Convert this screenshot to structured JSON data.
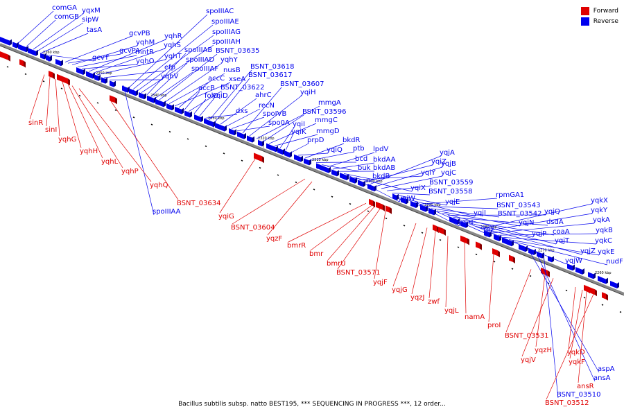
{
  "caption": "Bacillus subtilis subsp. natto BEST195, *** SEQUENCING IN PROGRESS ***, 12 order...",
  "legend": [
    {
      "label": "Forward",
      "color": "#e00000"
    },
    {
      "label": "Reverse",
      "color": "#0000ee"
    }
  ],
  "colors": {
    "forward": "#e00000",
    "reverse": "#0000ee",
    "axis": "#888888"
  },
  "ticks": [
    "2360 kbp",
    "2350 kbp",
    "2340 kbp",
    "2330 kbp",
    "2320 kbp",
    "2310 kbp",
    "2300 kbp",
    "2290 kbp",
    "2280 kbp",
    "2270 kbp",
    "2260 kbp"
  ],
  "reverse_labels": [
    "comGA",
    "comGB",
    "yqxM",
    "sipW",
    "tasA",
    "gcvT",
    "gcvPB",
    "gcvPA",
    "yqhM",
    "mntR",
    "yqhO",
    "yqhR",
    "yqhS",
    "yqhT",
    "efp",
    "yqhV",
    "spoIIIAC",
    "spoIIIAE",
    "spoIIIAG",
    "spoIIIAH",
    "spoIIIAB",
    "spoIIIAD",
    "spoIIIAF",
    "BSNT_03635",
    "yqhY",
    "nusB",
    "xseA",
    "accC",
    "accB",
    "BSNT_03622",
    "folD",
    "yqiD",
    "dxs",
    "BSNT_03618",
    "BSNT_03617",
    "ahrC",
    "recN",
    "spoIVB",
    "spo0A",
    "BSNT_03607",
    "yqiH",
    "mmgA",
    "BSNT_03596",
    "mmgC",
    "mmgD",
    "yqiI",
    "yqiK",
    "prpD",
    "yqiQ",
    "bkdR",
    "ptb",
    "bcd",
    "buk",
    "lpdV",
    "bkdAA",
    "bkdAB",
    "bkdB",
    "yqiW",
    "yqiX",
    "yqiY",
    "yqiZ",
    "yqjA",
    "yqjB",
    "yqjC",
    "BSNT_03559",
    "BSNT_03558",
    "yqjE",
    "yqjH",
    "yqjI",
    "rnz",
    "rpmGA1",
    "BSNT_03543",
    "BSNT_03542",
    "yqjN",
    "yqjP",
    "yqjQ",
    "dsdA",
    "coaA",
    "yqjT",
    "yqjW",
    "yqjZ",
    "yqkX",
    "yqkY",
    "yqkA",
    "yqkB",
    "yqkC",
    "yqkE",
    "nudF",
    "spoIIIAA",
    "aspA",
    "ansA",
    "BSNT_03510"
  ],
  "forward_labels": [
    "sinR",
    "sinI",
    "yqhG",
    "yqhH",
    "yqhL",
    "yqhP",
    "yqhQ",
    "BSNT_03634",
    "yqiG",
    "BSNT_03604",
    "yqzF",
    "bmrR",
    "bmr",
    "bmrU",
    "BSNT_03571",
    "yqjF",
    "yqjG",
    "yqzJ",
    "zwf",
    "yqjL",
    "namA",
    "proI",
    "BSNT_03531",
    "yqzH",
    "yqjV",
    "yqkD",
    "yqkF",
    "ansR",
    "BSNT_03512"
  ]
}
